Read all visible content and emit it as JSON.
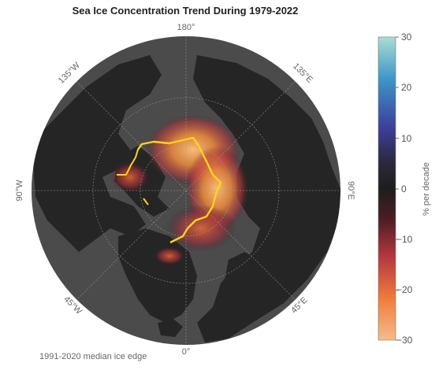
{
  "title": "Sea Ice Concentration Trend During 1979-2022",
  "longitude_labels": {
    "top": "180°",
    "top_left": "135°W",
    "top_right": "135°E",
    "left": "90°W",
    "right": "90°E",
    "bottom_left": "45°W",
    "bottom_right": "45°E",
    "bottom": "0°"
  },
  "colorbar": {
    "label": "% per decade",
    "ticks": [
      "30",
      "20",
      "10",
      "0",
      "−10",
      "−20",
      "−30"
    ],
    "range": [
      -30,
      30
    ]
  },
  "legend_note": "1991-2020 median ice edge",
  "colors": {
    "ocean": "#4a4a4a",
    "land": "#252525",
    "ice_edge": "#ffd31f",
    "negative_trend": "#f08a3c"
  }
}
